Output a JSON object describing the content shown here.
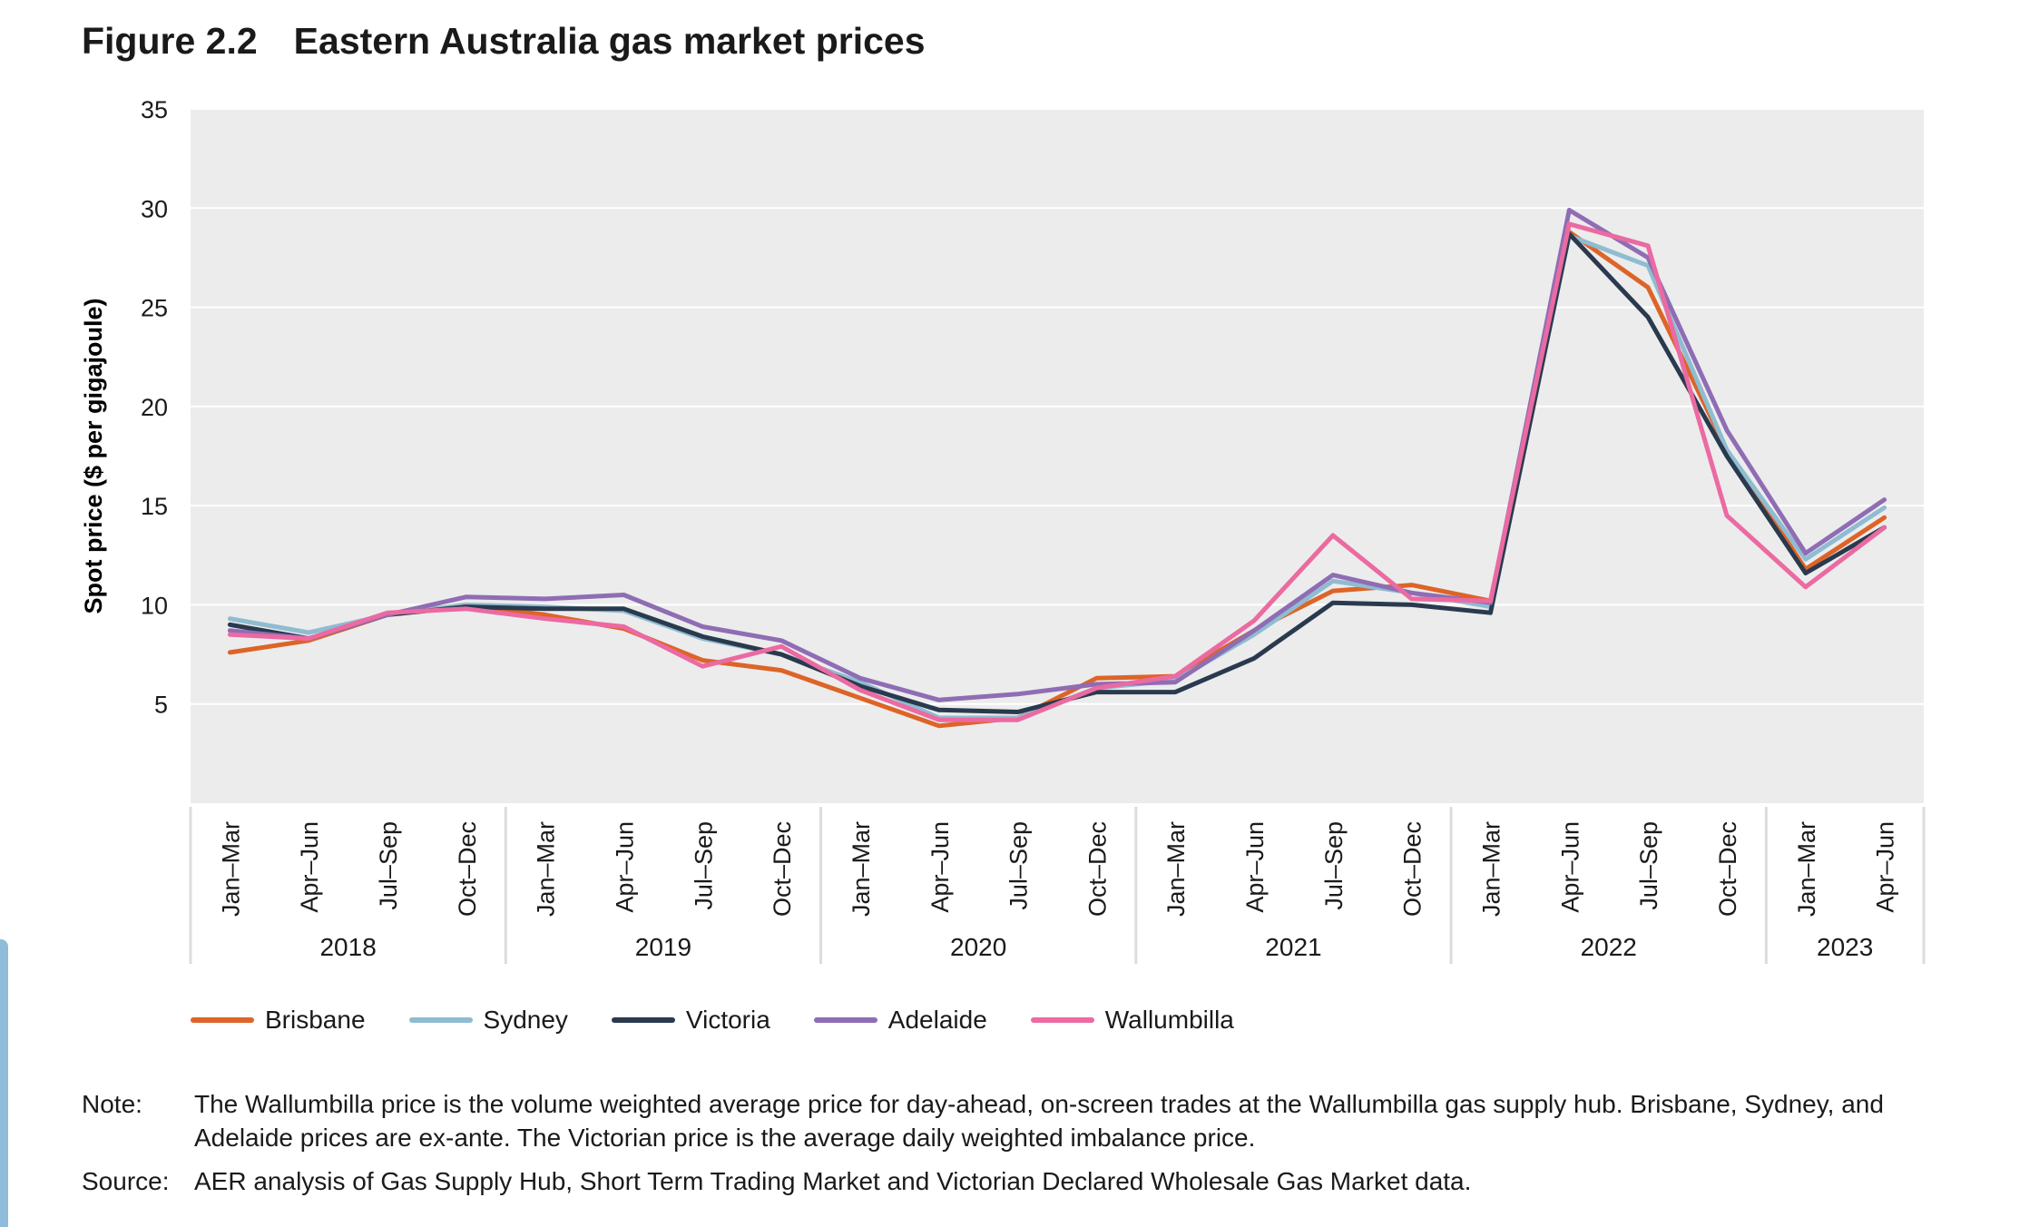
{
  "figure": {
    "number": "Figure 2.2",
    "title": "Eastern Australia gas market prices"
  },
  "notes": {
    "note_label": "Note:",
    "note_text": "The Wallumbilla price is the volume weighted average price for day-ahead, on-screen trades at the Wallumbilla gas supply hub. Brisbane, Sydney, and Adelaide prices are ex-ante. The Victorian price is the average daily weighted imbalance price.",
    "source_label": "Source:",
    "source_text": "AER analysis of Gas Supply Hub, Short Term Trading Market and Victorian Declared Wholesale Gas Market data."
  },
  "chart_data": {
    "type": "line",
    "ylabel": "Spot price ($ per gigajoule)",
    "ylim": [
      0,
      35
    ],
    "yticks": [
      5,
      10,
      15,
      20,
      25,
      30,
      35
    ],
    "grid": true,
    "legend_position": "bottom",
    "categories": [
      "Jan–Mar",
      "Apr–Jun",
      "Jul–Sep",
      "Oct–Dec",
      "Jan–Mar",
      "Apr–Jun",
      "Jul–Sep",
      "Oct–Dec",
      "Jan–Mar",
      "Apr–Jun",
      "Jul–Sep",
      "Oct–Dec",
      "Jan–Mar",
      "Apr–Jun",
      "Jul–Sep",
      "Oct–Dec",
      "Jan–Mar",
      "Apr–Jun",
      "Jul–Sep",
      "Oct–Dec",
      "Jan–Mar",
      "Apr–Jun"
    ],
    "years": [
      {
        "label": "2018",
        "count": 4
      },
      {
        "label": "2019",
        "count": 4
      },
      {
        "label": "2020",
        "count": 4
      },
      {
        "label": "2021",
        "count": 4
      },
      {
        "label": "2022",
        "count": 4
      },
      {
        "label": "2023",
        "count": 2
      }
    ],
    "series": [
      {
        "name": "Brisbane",
        "color": "#dd6428",
        "values": [
          7.6,
          8.2,
          9.5,
          10.0,
          9.5,
          8.8,
          7.2,
          6.7,
          5.3,
          3.9,
          4.3,
          6.3,
          6.4,
          8.7,
          10.7,
          11.0,
          10.2,
          28.8,
          26.0,
          17.8,
          11.8,
          14.4
        ]
      },
      {
        "name": "Sydney",
        "color": "#8fbcd1",
        "values": [
          9.3,
          8.6,
          9.5,
          10.0,
          9.9,
          9.7,
          8.3,
          7.5,
          6.1,
          4.3,
          4.3,
          5.8,
          6.2,
          8.5,
          11.2,
          10.6,
          9.9,
          28.6,
          27.1,
          17.8,
          12.3,
          14.9
        ]
      },
      {
        "name": "Victoria",
        "color": "#2a3a4e",
        "values": [
          9.0,
          8.3,
          9.5,
          9.9,
          9.8,
          9.8,
          8.4,
          7.5,
          5.9,
          4.7,
          4.6,
          5.6,
          5.6,
          7.3,
          10.1,
          10.0,
          9.6,
          28.7,
          24.5,
          17.5,
          11.6,
          13.9
        ]
      },
      {
        "name": "Adelaide",
        "color": "#8f6db4",
        "values": [
          8.7,
          8.3,
          9.5,
          10.4,
          10.3,
          10.5,
          8.9,
          8.2,
          6.3,
          5.2,
          5.5,
          6.0,
          6.1,
          8.7,
          11.5,
          10.6,
          10.1,
          29.9,
          27.5,
          18.8,
          12.6,
          15.3
        ]
      },
      {
        "name": "Wallumbilla",
        "color": "#eb6aa2",
        "values": [
          8.5,
          8.3,
          9.6,
          9.8,
          9.3,
          8.9,
          6.9,
          7.9,
          5.7,
          4.2,
          4.2,
          5.8,
          6.4,
          9.2,
          13.5,
          10.3,
          10.2,
          29.2,
          28.1,
          14.5,
          10.9,
          13.9
        ]
      }
    ]
  }
}
